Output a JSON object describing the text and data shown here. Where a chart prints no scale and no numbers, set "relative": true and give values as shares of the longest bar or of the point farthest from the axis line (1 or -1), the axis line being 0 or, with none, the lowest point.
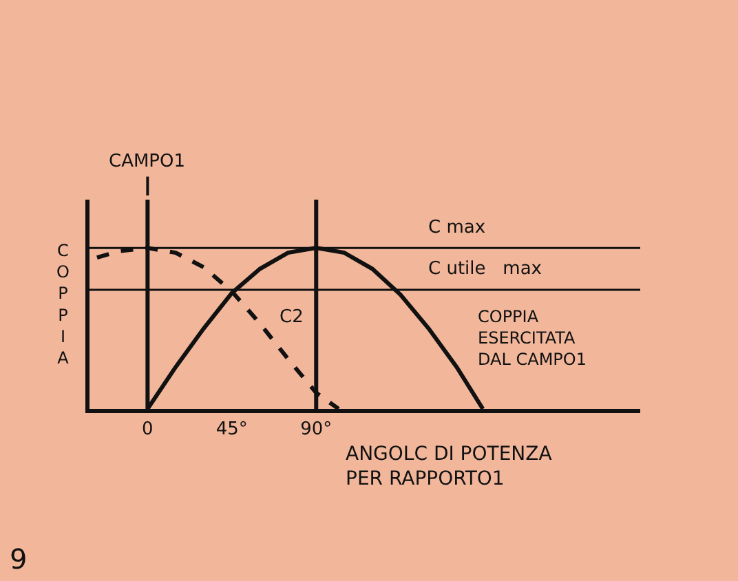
{
  "chart_data": {
    "type": "line",
    "relative": true,
    "xlabel": "ANGOLC DI POTENZA\nPER RAPPORTO1",
    "ylabel": "COPPIA",
    "xlim": [
      -31,
      263
    ],
    "xticks": [
      {
        "value": 0,
        "label": "0"
      },
      {
        "value": 45,
        "label": "45°"
      },
      {
        "value": 90,
        "label": "90°"
      }
    ],
    "series": [
      {
        "color": "#111111",
        "line_style": "solid",
        "x": [
          0,
          15,
          30,
          45,
          60,
          75,
          90,
          105,
          120,
          135,
          150,
          165,
          179
        ],
        "values": [
          0,
          0.26,
          0.5,
          0.72,
          0.87,
          0.97,
          1,
          0.97,
          0.87,
          0.71,
          0.5,
          0.26,
          0
        ]
      },
      {
        "color": "#111111",
        "line_style": "dashed",
        "x": [
          -27,
          -15,
          0,
          15,
          30,
          45,
          60,
          75,
          90,
          102
        ],
        "values": [
          0.94,
          0.98,
          1,
          0.97,
          0.88,
          0.73,
          0.53,
          0.31,
          0.1,
          0
        ]
      }
    ],
    "ref_lines": [
      {
        "axis": "y",
        "value": 1,
        "label": "C max"
      },
      {
        "axis": "y",
        "value": 0.74,
        "label": "C utile   max"
      },
      {
        "axis": "x",
        "value": 0,
        "label": "CAMPO1"
      },
      {
        "axis": "x",
        "value": 90
      }
    ],
    "annotations": [
      "C2",
      "COPPIA\nESERCITATA\nDAL CAMPO1",
      "9"
    ],
    "grid": false
  }
}
